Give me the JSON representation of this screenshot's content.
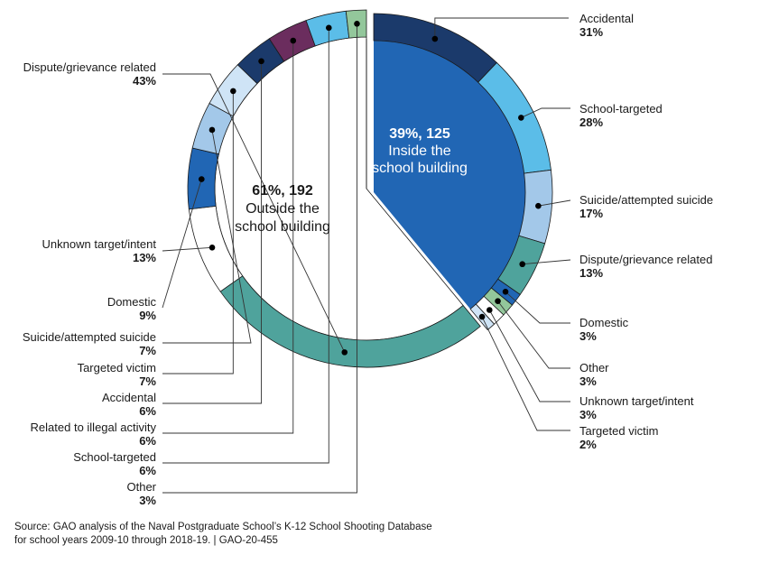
{
  "chart_data": {
    "type": "pie",
    "title": "",
    "groups": [
      {
        "name": "Inside the school building",
        "percent_label": "39%, 125",
        "label_line1": "Inside the",
        "label_line2": "school building",
        "share": 39,
        "count": 125,
        "color": "#2166b4",
        "segments": [
          {
            "label": "Accidental",
            "value": 31,
            "value_label": "31%",
            "color": "#1b3a6b"
          },
          {
            "label": "School-targeted",
            "value": 28,
            "value_label": "28%",
            "color": "#5bbde8"
          },
          {
            "label": "Suicide/attempted suicide",
            "value": 17,
            "value_label": "17%",
            "color": "#a3c8e9"
          },
          {
            "label": "Dispute/grievance related",
            "value": 13,
            "value_label": "13%",
            "color": "#4fa39c"
          },
          {
            "label": "Domestic",
            "value": 3,
            "value_label": "3%",
            "color": "#2166b4"
          },
          {
            "label": "Other",
            "value": 3,
            "value_label": "3%",
            "color": "#93c79b"
          },
          {
            "label": "Unknown target/intent",
            "value": 3,
            "value_label": "3%",
            "color": "#ffffff"
          },
          {
            "label": "Targeted victim",
            "value": 2,
            "value_label": "2%",
            "color": "#cfe4f6"
          }
        ]
      },
      {
        "name": "Outside the school building",
        "percent_label": "61%, 192",
        "label_line1": "Outside the",
        "label_line2": "school building",
        "share": 61,
        "count": 192,
        "color": "#ffffff",
        "segments": [
          {
            "label": "Dispute/grievance related",
            "value": 43,
            "value_label": "43%",
            "color": "#4fa39c"
          },
          {
            "label": "Unknown target/intent",
            "value": 13,
            "value_label": "13%",
            "color": "#ffffff"
          },
          {
            "label": "Domestic",
            "value": 9,
            "value_label": "9%",
            "color": "#2166b4"
          },
          {
            "label": "Suicide/attempted suicide",
            "value": 7,
            "value_label": "7%",
            "color": "#a3c8e9"
          },
          {
            "label": "Targeted victim",
            "value": 7,
            "value_label": "7%",
            "color": "#cfe4f6"
          },
          {
            "label": "Accidental",
            "value": 6,
            "value_label": "6%",
            "color": "#1b3a6b"
          },
          {
            "label": "Related to illegal activity",
            "value": 6,
            "value_label": "6%",
            "color": "#6b2d5e"
          },
          {
            "label": "School-targeted",
            "value": 6,
            "value_label": "6%",
            "color": "#5bbde8"
          },
          {
            "label": "Other",
            "value": 3,
            "value_label": "3%",
            "color": "#93c79b"
          }
        ]
      }
    ]
  },
  "source": {
    "line1": "Source: GAO analysis of the Naval Postgraduate School’s K-12 School Shooting Database",
    "line2": "for school years 2009-10 through 2018-19.  |  GAO-20-455"
  }
}
